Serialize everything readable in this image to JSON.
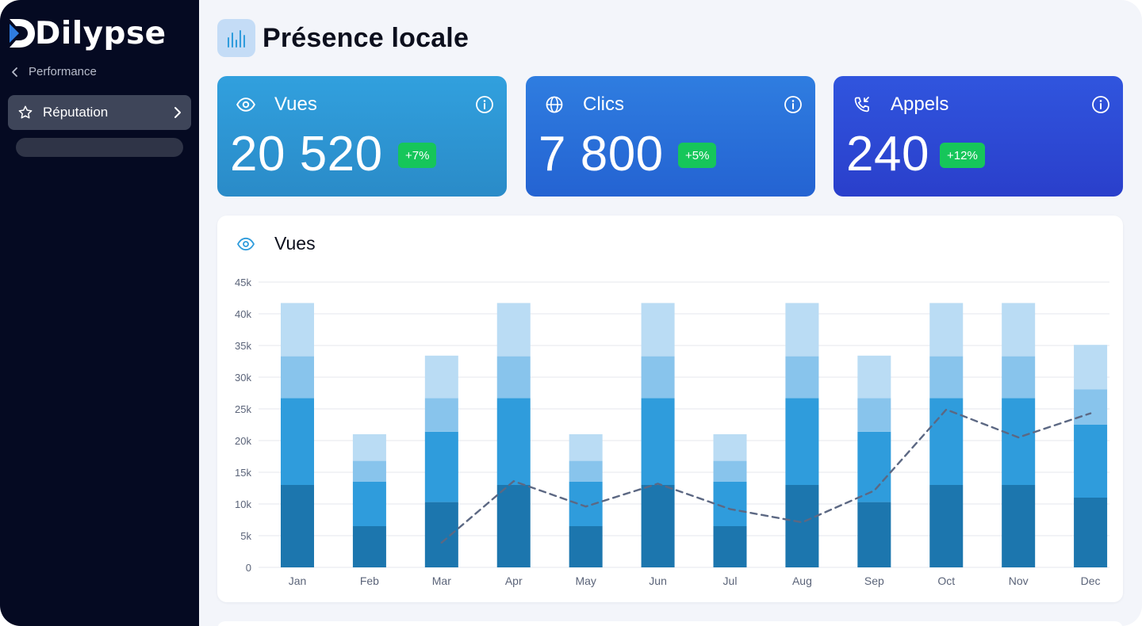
{
  "app": {
    "logo_text": "Dilypse"
  },
  "sidebar": {
    "back_label": "Performance",
    "active_item": {
      "label": "Réputation",
      "icon": "star-icon"
    }
  },
  "page": {
    "title": "Présence locale",
    "icon": "bar-chart-icon"
  },
  "stats": [
    {
      "label": "Vues",
      "value": "20 520",
      "change": "+7%",
      "icon": "eye-icon"
    },
    {
      "label": "Clics",
      "value": "7 800",
      "change": "+5%",
      "icon": "globe-icon"
    },
    {
      "label": "Appels",
      "value": "240",
      "change": "+12%",
      "icon": "phone-incoming-icon"
    }
  ],
  "colors": {
    "sidebar_bg": "#050a22",
    "badge_green": "#16c65a",
    "series": [
      "#1c76ae",
      "#2f9cdc",
      "#88c4ec",
      "#badcf4"
    ],
    "line": "#5c6883"
  },
  "chart_panel": {
    "title": "Vues"
  },
  "chart_data": {
    "type": "bar",
    "stacked": true,
    "categories": [
      "Jan",
      "Feb",
      "Mar",
      "Apr",
      "May",
      "Jun",
      "Jul",
      "Aug",
      "Sep",
      "Oct",
      "Nov",
      "Dec"
    ],
    "y_ticks": [
      "0",
      "5k",
      "10k",
      "15k",
      "20k",
      "25k",
      "30k",
      "35k",
      "40k",
      "45k"
    ],
    "ylim": [
      0,
      45000
    ],
    "grid": true,
    "series": [
      {
        "values": [
          13000,
          6500,
          10300,
          13000,
          6500,
          13000,
          6500,
          13000,
          10300,
          13000,
          13000,
          11000
        ]
      },
      {
        "values": [
          13700,
          7000,
          11100,
          13700,
          7000,
          13700,
          7000,
          13700,
          11100,
          13700,
          13700,
          11500
        ]
      },
      {
        "values": [
          6600,
          3300,
          5300,
          6600,
          3300,
          6600,
          3300,
          6600,
          5300,
          6600,
          6600,
          5600
        ]
      },
      {
        "values": [
          8400,
          4200,
          6700,
          8400,
          4200,
          8400,
          4200,
          8400,
          6700,
          8400,
          8400,
          7000
        ]
      }
    ],
    "line": {
      "style": "dashed",
      "values": [
        null,
        null,
        3900,
        13600,
        9600,
        13200,
        9200,
        7100,
        12100,
        24900,
        20500,
        24300
      ]
    }
  }
}
